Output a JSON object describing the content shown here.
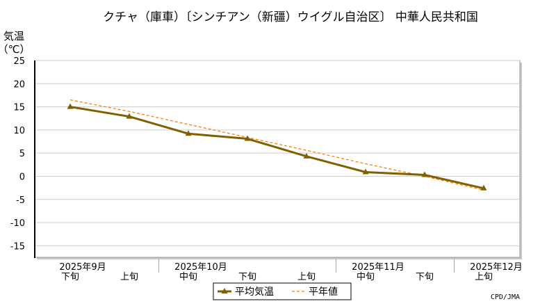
{
  "chart_data": {
    "type": "line",
    "title": "クチャ（庫車）〔シンチアン（新疆）ウイグル自治区〕 中華人民共和国",
    "ylabel": "気温",
    "ylabel_unit": "（℃）",
    "ylim": [
      -17.5,
      25
    ],
    "yticks": [
      25,
      20,
      15,
      10,
      5,
      0,
      -5,
      -10,
      -15
    ],
    "grid": true,
    "x_periods": [
      "下旬",
      "上旬",
      "中旬",
      "下旬",
      "上旬",
      "中旬",
      "下旬",
      "上旬"
    ],
    "x_months": [
      {
        "label": "2025年9月",
        "index": 0
      },
      {
        "label": "2025年10月",
        "index": 2
      },
      {
        "label": "2025年11月",
        "index": 5
      },
      {
        "label": "2025年12月",
        "index": 7
      }
    ],
    "series": [
      {
        "name": "平均気温",
        "values": [
          15.0,
          12.9,
          9.2,
          8.1,
          4.3,
          0.9,
          0.3,
          -2.6
        ],
        "color": "#806000",
        "style": "solid-triangle"
      },
      {
        "name": "平年値",
        "values": [
          16.5,
          14.0,
          11.2,
          8.4,
          5.6,
          2.7,
          0.0,
          -3.0
        ],
        "color": "#ff7f00",
        "style": "dashed"
      }
    ],
    "legend_placement": "bottom-center",
    "credit": "CPD/JMA"
  }
}
